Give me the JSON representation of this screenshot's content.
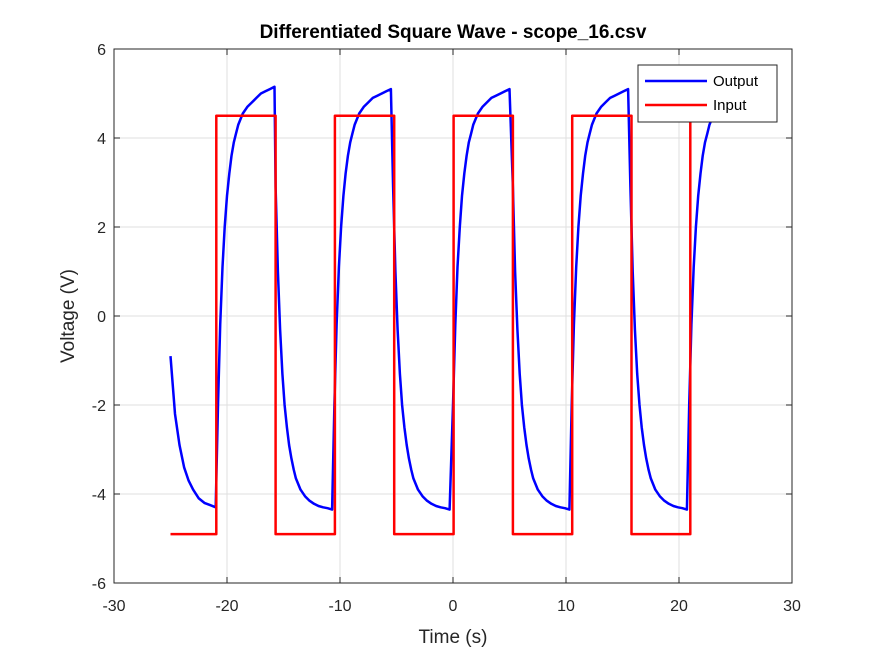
{
  "chart_data": {
    "type": "line",
    "title": "Differentiated Square Wave - scope_16.csv",
    "xlabel": "Time (s)",
    "ylabel": "Voltage (V)",
    "xlim": [
      -30,
      30
    ],
    "ylim": [
      -6,
      6
    ],
    "xticks": [
      -30,
      -20,
      -10,
      0,
      10,
      20,
      30
    ],
    "yticks": [
      -6,
      -4,
      -2,
      0,
      2,
      4,
      6
    ],
    "grid": true,
    "legend_position": "top-right",
    "series": [
      {
        "name": "Output",
        "color": "#0000ff",
        "x": [
          -25.0,
          -24.6,
          -24.2,
          -23.8,
          -23.4,
          -23.0,
          -22.5,
          -22.0,
          -21.5,
          -21.0,
          -20.8,
          -20.6,
          -20.4,
          -20.2,
          -20.0,
          -19.8,
          -19.6,
          -19.4,
          -19.2,
          -19.0,
          -18.6,
          -18.2,
          -17.8,
          -17.4,
          -17.0,
          -16.6,
          -16.2,
          -15.8,
          -15.7,
          -15.5,
          -15.3,
          -15.1,
          -14.9,
          -14.7,
          -14.5,
          -14.3,
          -14.1,
          -13.9,
          -13.5,
          -13.1,
          -12.7,
          -12.3,
          -11.9,
          -11.5,
          -11.1,
          -10.7,
          -10.5,
          -10.3,
          -10.1,
          -9.9,
          -9.7,
          -9.5,
          -9.3,
          -9.1,
          -8.9,
          -8.7,
          -8.3,
          -7.9,
          -7.5,
          -7.1,
          -6.7,
          -6.3,
          -5.9,
          -5.5,
          -5.3,
          -5.1,
          -4.9,
          -4.7,
          -4.5,
          -4.3,
          -4.1,
          -3.9,
          -3.7,
          -3.5,
          -3.1,
          -2.7,
          -2.3,
          -1.9,
          -1.5,
          -1.1,
          -0.7,
          -0.3,
          0.0,
          0.2,
          0.4,
          0.6,
          0.8,
          1.0,
          1.2,
          1.4,
          1.6,
          1.8,
          2.2,
          2.6,
          3.0,
          3.4,
          3.8,
          4.2,
          4.6,
          5.0,
          5.3,
          5.5,
          5.7,
          5.9,
          6.1,
          6.3,
          6.5,
          6.7,
          6.9,
          7.1,
          7.5,
          7.9,
          8.3,
          8.7,
          9.1,
          9.5,
          9.9,
          10.3,
          10.5,
          10.7,
          10.9,
          11.1,
          11.3,
          11.5,
          11.7,
          11.9,
          12.1,
          12.3,
          12.7,
          13.1,
          13.5,
          13.9,
          14.3,
          14.7,
          15.1,
          15.5,
          15.7,
          15.9,
          16.1,
          16.3,
          16.5,
          16.7,
          16.9,
          17.1,
          17.3,
          17.5,
          17.9,
          18.3,
          18.7,
          19.1,
          19.5,
          19.9,
          20.3,
          20.7,
          20.9,
          21.1,
          21.3,
          21.5,
          21.7,
          21.9,
          22.1,
          22.3,
          22.5,
          22.7,
          23.1,
          23.5
        ],
        "y": [
          -0.9,
          -2.2,
          -2.9,
          -3.4,
          -3.7,
          -3.9,
          -4.1,
          -4.2,
          -4.25,
          -4.3,
          -2.0,
          -0.2,
          1.1,
          2.0,
          2.7,
          3.2,
          3.6,
          3.9,
          4.1,
          4.3,
          4.55,
          4.7,
          4.8,
          4.9,
          5.0,
          5.05,
          5.1,
          5.15,
          2.9,
          1.0,
          -0.3,
          -1.3,
          -2.0,
          -2.5,
          -2.9,
          -3.2,
          -3.45,
          -3.65,
          -3.9,
          -4.05,
          -4.15,
          -4.22,
          -4.27,
          -4.3,
          -4.32,
          -4.35,
          -2.0,
          -0.2,
          1.1,
          2.0,
          2.7,
          3.2,
          3.6,
          3.9,
          4.1,
          4.3,
          4.55,
          4.7,
          4.8,
          4.9,
          4.95,
          5.0,
          5.05,
          5.1,
          2.9,
          1.0,
          -0.3,
          -1.3,
          -2.0,
          -2.5,
          -2.9,
          -3.2,
          -3.45,
          -3.65,
          -3.9,
          -4.05,
          -4.15,
          -4.22,
          -4.27,
          -4.3,
          -4.32,
          -4.35,
          -2.0,
          -0.2,
          1.1,
          2.0,
          2.7,
          3.2,
          3.6,
          3.9,
          4.1,
          4.3,
          4.55,
          4.7,
          4.8,
          4.9,
          4.95,
          5.0,
          5.05,
          5.1,
          2.9,
          1.0,
          -0.3,
          -1.3,
          -2.0,
          -2.5,
          -2.9,
          -3.2,
          -3.45,
          -3.65,
          -3.9,
          -4.05,
          -4.15,
          -4.22,
          -4.27,
          -4.3,
          -4.32,
          -4.35,
          -2.0,
          -0.2,
          1.1,
          2.0,
          2.7,
          3.2,
          3.6,
          3.9,
          4.1,
          4.3,
          4.55,
          4.7,
          4.8,
          4.9,
          4.95,
          5.0,
          5.05,
          5.1,
          2.9,
          1.0,
          -0.3,
          -1.3,
          -2.0,
          -2.5,
          -2.9,
          -3.2,
          -3.45,
          -3.65,
          -3.9,
          -4.05,
          -4.15,
          -4.22,
          -4.27,
          -4.3,
          -4.32,
          -4.35,
          -2.0,
          -0.2,
          1.1,
          2.0,
          2.7,
          3.2,
          3.6,
          3.9,
          4.1,
          4.3,
          4.55,
          4.7
        ]
      },
      {
        "name": "Input",
        "color": "#ff0000",
        "x": [
          -25.0,
          -20.95,
          -20.95,
          -15.7,
          -15.7,
          -10.45,
          -10.45,
          -5.2,
          -5.2,
          0.05,
          0.05,
          5.3,
          5.3,
          10.55,
          10.55,
          15.8,
          15.8,
          21.0,
          21.0,
          23.5
        ],
        "y": [
          -4.9,
          -4.9,
          4.5,
          4.5,
          -4.9,
          -4.9,
          4.5,
          4.5,
          -4.9,
          -4.9,
          4.5,
          4.5,
          -4.9,
          -4.9,
          4.5,
          4.5,
          -4.9,
          -4.9,
          4.5,
          4.5
        ]
      }
    ]
  }
}
